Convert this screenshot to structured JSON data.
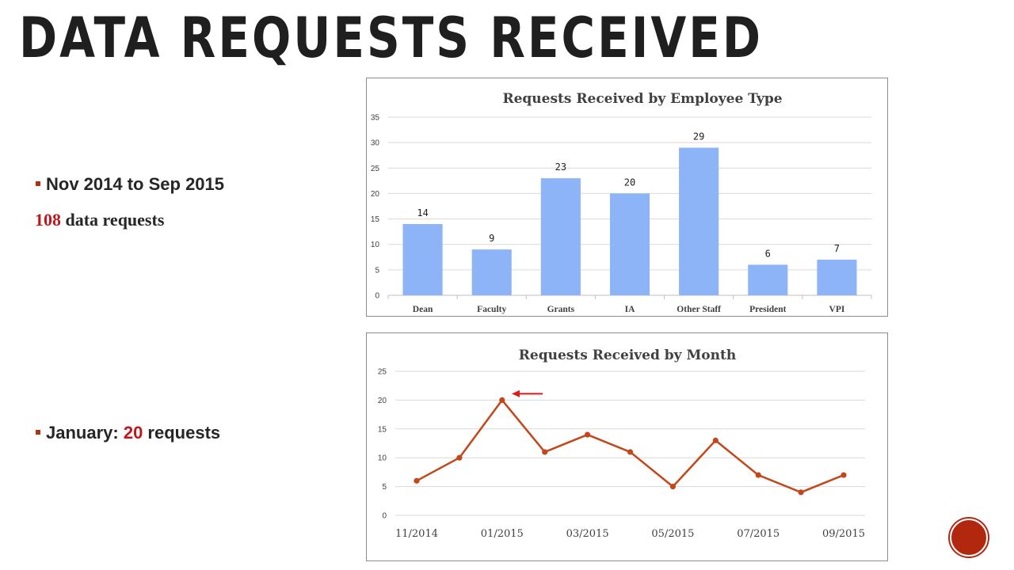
{
  "slide": {
    "title": "DATA REQUESTS RECEIVED",
    "bullets": [
      {
        "text": "Nov 2014 to Sep 2015",
        "subline": {
          "highlight": "108",
          "rest": " data requests"
        }
      },
      {
        "prefix": "January: ",
        "highlight": "20",
        "suffix": " requests"
      }
    ]
  },
  "colors": {
    "accent": "#b33215",
    "highlight": "#c0171b",
    "bar": "#8db4f7",
    "line": "#c4471b",
    "arrow": "#e0191b"
  },
  "chart_data": [
    {
      "type": "bar",
      "title": "Requests Received by Employee Type",
      "categories": [
        "Dean",
        "Faculty",
        "Grants",
        "IA",
        "Other Staff",
        "President",
        "VPI"
      ],
      "values": [
        14,
        9,
        23,
        20,
        29,
        6,
        7
      ],
      "yticks": [
        "0",
        "5",
        "10",
        "15",
        "20",
        "25",
        "30",
        "35"
      ],
      "ylim": [
        0,
        35
      ],
      "grid": true,
      "data_labels": true
    },
    {
      "type": "line",
      "title": "Requests Received by Month",
      "x": [
        "2014-11",
        "2014-12",
        "2015-01",
        "2015-02",
        "2015-03",
        "2015-04",
        "2015-05",
        "2015-06",
        "2015-07",
        "2015-08",
        "2015-09"
      ],
      "values": [
        6,
        10,
        20,
        11,
        14,
        11,
        5,
        13,
        7,
        4,
        7
      ],
      "xtick_labels": [
        "11/2014",
        "01/2015",
        "03/2015",
        "05/2015",
        "07/2015",
        "09/2015"
      ],
      "yticks": [
        "0",
        "5",
        "10",
        "15",
        "20",
        "25"
      ],
      "ylim": [
        0,
        25
      ],
      "grid": true,
      "annotation": "arrow pointing to the 01/2015 peak"
    }
  ]
}
